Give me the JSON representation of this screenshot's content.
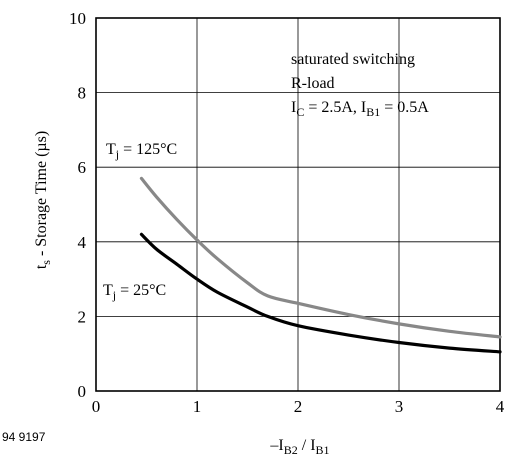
{
  "figure_code": "94 9197",
  "chart_data": {
    "type": "line",
    "xlim": [
      0,
      4
    ],
    "ylim": [
      0,
      10
    ],
    "x_ticks": [
      "0",
      "1",
      "2",
      "3",
      "4"
    ],
    "y_ticks": [
      "0",
      "2",
      "4",
      "6",
      "8",
      "10"
    ],
    "grid": true,
    "xlabel": {
      "main": "–I",
      "sub1": "B2",
      "mid": " / I",
      "sub2": "B1"
    },
    "ylabel": {
      "main": "t",
      "sub": "s",
      "rest": " - Storage Time (µs)"
    },
    "annotation": {
      "line1": "saturated switching",
      "line2": "R-load",
      "line3": {
        "a": "I",
        "a_sub": "C",
        "b": " = 2.5A, I",
        "b_sub": "B1",
        "c": " = 0.5A"
      }
    },
    "series": [
      {
        "name": {
          "a": "T",
          "a_sub": "j",
          "b": " = 125°C"
        },
        "color": "#888888",
        "x": [
          0.45,
          0.6,
          0.8,
          1.0,
          1.2,
          1.5,
          1.7,
          2.0,
          2.5,
          3.0,
          3.5,
          4.0
        ],
        "y": [
          5.7,
          5.2,
          4.6,
          4.05,
          3.55,
          2.9,
          2.55,
          2.35,
          2.05,
          1.8,
          1.6,
          1.45
        ]
      },
      {
        "name": {
          "a": "T",
          "a_sub": "j",
          "b": " = 25°C"
        },
        "color": "#000000",
        "x": [
          0.45,
          0.6,
          0.8,
          1.0,
          1.2,
          1.5,
          1.7,
          2.0,
          2.5,
          3.0,
          3.5,
          4.0
        ],
        "y": [
          4.2,
          3.8,
          3.4,
          3.0,
          2.65,
          2.25,
          2.0,
          1.75,
          1.5,
          1.3,
          1.15,
          1.05
        ]
      }
    ]
  }
}
